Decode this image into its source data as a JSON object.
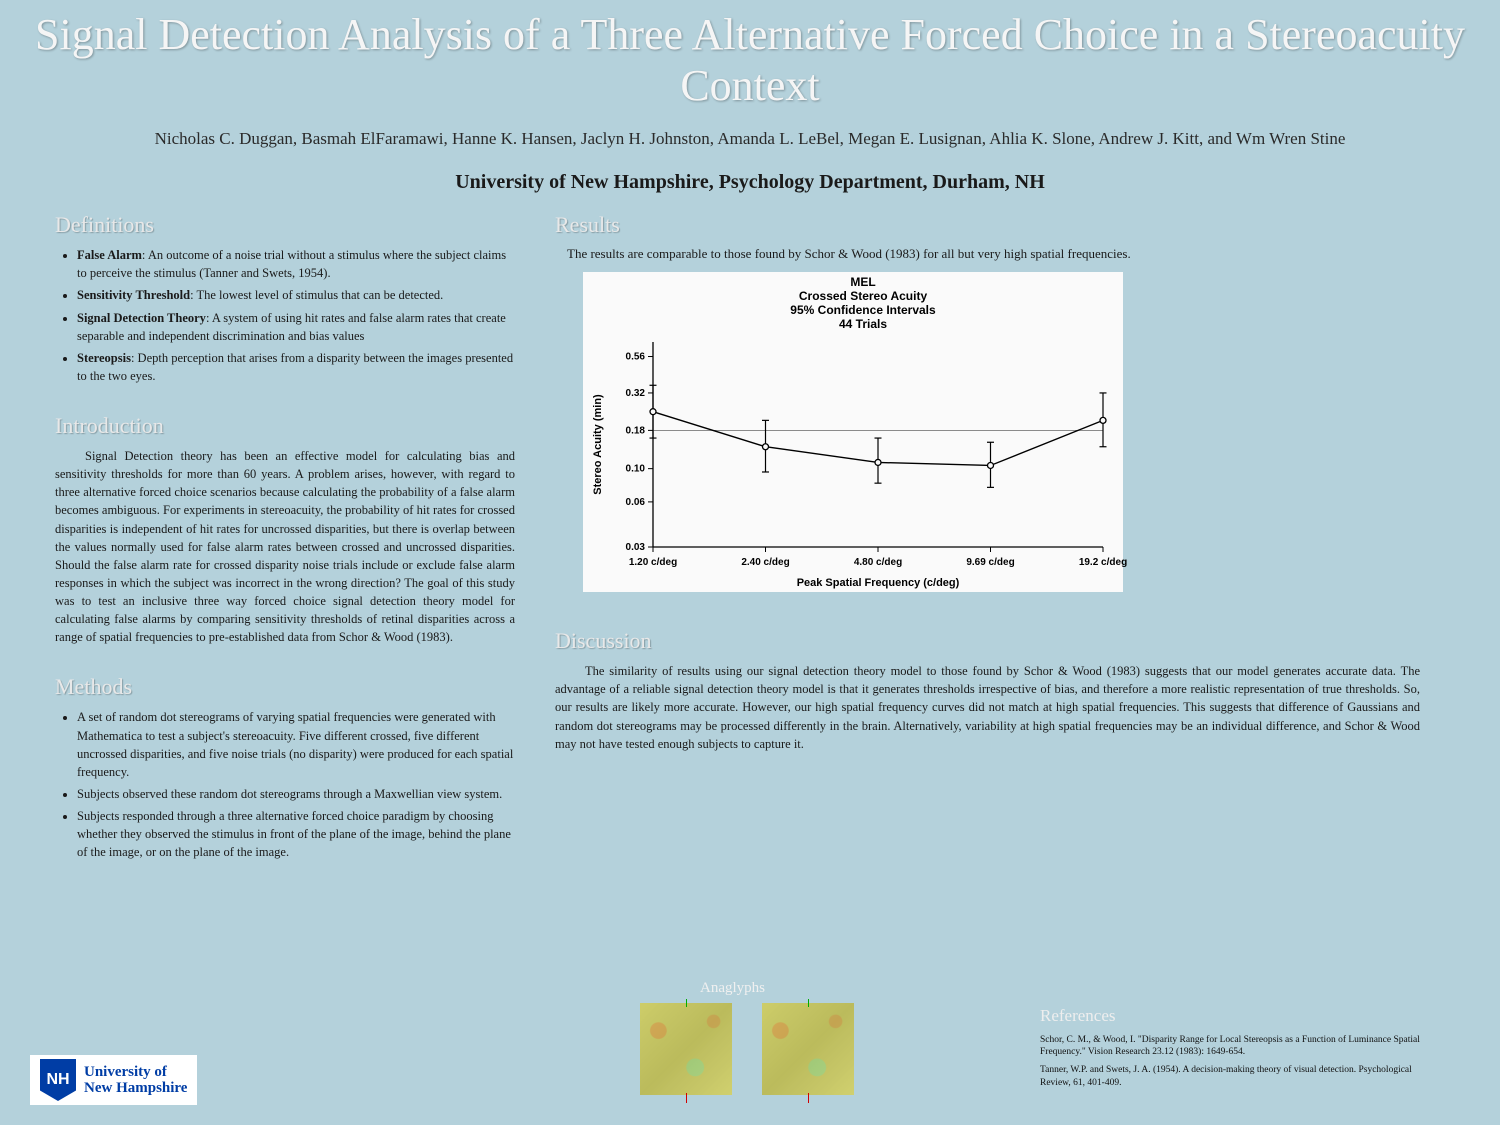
{
  "title": "Signal Detection Analysis of a Three Alternative Forced Choice in a Stereoacuity Context",
  "authors": "Nicholas C. Duggan, Basmah ElFaramawi, Hanne K. Hansen, Jaclyn H. Johnston, Amanda L. LeBel, Megan E. Lusignan, Ahlia K. Slone, Andrew J. Kitt, and Wm Wren Stine",
  "affiliation": "University of New Hampshire, Psychology Department, Durham, NH",
  "sections": {
    "definitions": {
      "heading": "Definitions",
      "items": [
        {
          "term": "False Alarm",
          "def": ": An outcome of a noise trial without a stimulus where the subject claims to perceive the stimulus (Tanner and Swets, 1954)."
        },
        {
          "term": "Sensitivity Threshold",
          "def": ": The lowest level of stimulus that can be detected."
        },
        {
          "term": "Signal Detection Theory",
          "def": ": A system of using hit rates and false alarm rates that create separable and independent discrimination and bias values"
        },
        {
          "term": "Stereopsis",
          "def": ": Depth perception that arises from a disparity between the images presented to the two eyes."
        }
      ]
    },
    "introduction": {
      "heading": "Introduction",
      "text": "Signal Detection theory has been an effective model for calculating bias and sensitivity thresholds for more than 60 years. A problem arises, however, with regard to three alternative forced choice scenarios because calculating the probability of a false alarm becomes ambiguous. For experiments in stereoacuity, the probability of hit rates for crossed disparities is independent of hit rates for uncrossed disparities, but there is overlap between the values normally used for false alarm rates between crossed and uncrossed disparities. Should the false alarm rate for crossed disparity noise trials include or exclude false alarm responses in which the subject was incorrect in the wrong direction? The goal of this study was to test an inclusive three way forced choice signal detection theory model for calculating false alarms by comparing sensitivity thresholds of retinal disparities across a range of spatial frequencies to pre-established data from Schor & Wood (1983)."
    },
    "methods": {
      "heading": "Methods",
      "items": [
        "A set of random dot stereograms of varying spatial frequencies were generated with Mathematica to test a subject's stereoacuity. Five different crossed, five different uncrossed disparities, and five noise trials (no disparity) were produced for each spatial frequency.",
        "Subjects observed these random dot stereograms through a Maxwellian view system.",
        "Subjects responded through a three alternative forced choice paradigm by choosing whether they observed the stimulus in front of the plane of the image, behind the plane of the image, or on the plane of the image."
      ]
    },
    "results": {
      "heading": "Results",
      "intro": "The results are comparable to those found by Schor & Wood (1983) for all but very high spatial frequencies."
    },
    "discussion": {
      "heading": "Discussion",
      "text": "The similarity of results using our signal detection theory model to those found by Schor & Wood (1983) suggests that our model generates accurate data. The advantage of a reliable signal detection theory model is that it generates thresholds irrespective of bias, and therefore a more realistic representation of true thresholds. So, our results are likely more accurate. However, our high spatial frequency curves did not match at high spatial frequencies. This suggests that difference of Gaussians and random dot stereograms may be processed differently in the brain. Alternatively, variability at high spatial frequencies may be an individual difference, and Schor & Wood may not have tested enough subjects to capture it."
    },
    "anaglyphs": {
      "heading": "Anaglyphs"
    },
    "references": {
      "heading": "References",
      "items": [
        "Schor, C. M., & Wood, I. \"Disparity Range for Local Stereopsis as a Function of Luminance Spatial Frequency.\" Vision Research 23.12 (1983): 1649-654.",
        "Tanner, W.P. and Swets, J. A. (1954). A decision-making theory of visual detection. Psychological Review, 61, 401-409."
      ]
    }
  },
  "chart": {
    "type": "line-errorbar",
    "title_lines": [
      "MEL",
      "Crossed Stereo Acuity",
      "95% Confidence Intervals",
      "44 Trials"
    ],
    "title_fontsize": 12,
    "title_fontweight": "bold",
    "xlabel": "Peak Spatial Frequency (c/deg)",
    "ylabel": "Stereo Acuity (min)",
    "label_fontsize": 11,
    "label_fontweight": "bold",
    "tick_fontsize": 10,
    "tick_fontweight": "bold",
    "background_color": "#fafafa",
    "line_color": "#000000",
    "line_width": 1.4,
    "marker": "circle-open",
    "marker_size": 6,
    "marker_color": "#000000",
    "errorbar_color": "#000000",
    "errorbar_width": 1.2,
    "errorbar_cap": 7,
    "hline_y": 0.18,
    "hline_color": "#666666",
    "hline_width": 0.8,
    "yscale": "log",
    "ylim": [
      0.03,
      0.7
    ],
    "yticks": [
      0.03,
      0.06,
      0.1,
      0.18,
      0.32,
      0.56
    ],
    "xtick_labels": [
      "1.20 c/deg",
      "2.40 c/deg",
      "4.80 c/deg",
      "9.69 c/deg",
      "19.2 c/deg"
    ],
    "points": [
      {
        "x": 0,
        "y": 0.24,
        "lo": 0.16,
        "hi": 0.36
      },
      {
        "x": 1,
        "y": 0.14,
        "lo": 0.095,
        "hi": 0.21
      },
      {
        "x": 2,
        "y": 0.11,
        "lo": 0.08,
        "hi": 0.16
      },
      {
        "x": 3,
        "y": 0.105,
        "lo": 0.075,
        "hi": 0.15
      },
      {
        "x": 4,
        "y": 0.21,
        "lo": 0.14,
        "hi": 0.32
      }
    ]
  },
  "logo": {
    "initials": "NH",
    "text1": "University of",
    "text2": "New Hampshire"
  },
  "colors": {
    "page_bg": "#b4d1db",
    "heading": "#e8e8e8",
    "title": "#f5f5f5",
    "body": "#1a1a1a"
  }
}
